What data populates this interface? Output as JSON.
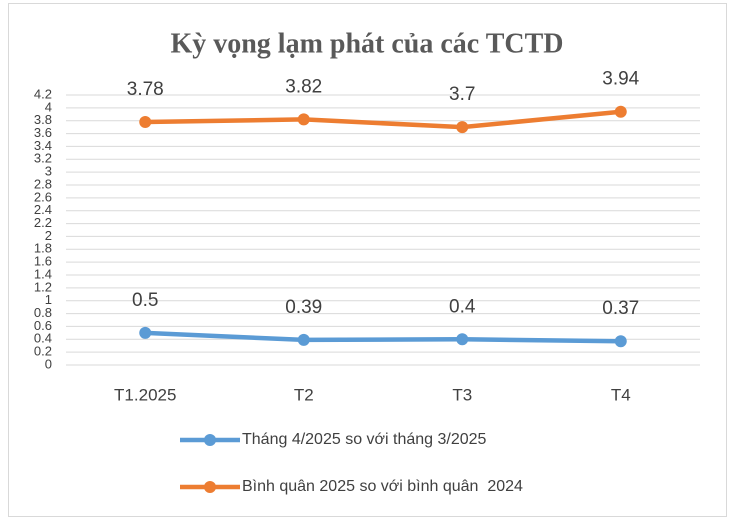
{
  "chart_data": {
    "type": "line",
    "title": "Kỳ vọng lạm phát của các TCTD",
    "categories": [
      "T1.2025",
      "T2",
      "T3",
      "T4"
    ],
    "series": [
      {
        "name": "Tháng 4/2025 so với tháng 3/2025",
        "color": "#5b9bd5",
        "values": [
          0.5,
          0.39,
          0.4,
          0.37
        ]
      },
      {
        "name": "Bình quân 2025 so với bình quân  2024",
        "color": "#ed7d31",
        "values": [
          3.78,
          3.82,
          3.7,
          3.94
        ]
      }
    ],
    "ylim": [
      0,
      4.2
    ],
    "yticks": [
      0,
      0.2,
      0.4,
      0.6,
      0.8,
      1,
      1.2,
      1.4,
      1.6,
      1.8,
      2,
      2.2,
      2.4,
      2.6,
      2.8,
      3,
      3.2,
      3.4,
      3.6,
      3.8,
      4,
      4.2
    ],
    "grid": true,
    "legend": "bottom"
  }
}
